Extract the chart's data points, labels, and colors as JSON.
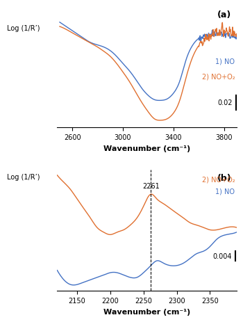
{
  "panel_a": {
    "title": "(a)",
    "xlabel": "Wavenumber (cm⁻¹)",
    "ylabel": "Log (1/R’)",
    "scale_bar_value": "0.02",
    "xlim": [
      3900,
      2480
    ],
    "ylim": [
      -0.12,
      0.05
    ],
    "legend": [
      {
        "label": "1) NO",
        "color": "#4472c4"
      },
      {
        "label": "2) NO+O₂",
        "color": "#e07030"
      }
    ],
    "curve_NO": {
      "color": "#4472c4",
      "x": [
        3900,
        3850,
        3800,
        3750,
        3700,
        3650,
        3600,
        3550,
        3500,
        3450,
        3400,
        3350,
        3300,
        3250,
        3200,
        3150,
        3100,
        3050,
        3000,
        2950,
        2900,
        2850,
        2800,
        2750,
        2700,
        2650,
        2600,
        2550,
        2500
      ],
      "y": [
        0.008,
        0.009,
        0.012,
        0.012,
        0.01,
        0.008,
        0.005,
        -0.005,
        -0.025,
        -0.055,
        -0.072,
        -0.08,
        -0.082,
        -0.081,
        -0.075,
        -0.065,
        -0.052,
        -0.04,
        -0.03,
        -0.02,
        -0.012,
        -0.007,
        -0.004,
        -0.001,
        0.004,
        0.01,
        0.016,
        0.022,
        0.028
      ]
    },
    "curve_NO2": {
      "color": "#e07030",
      "x": [
        3900,
        3850,
        3800,
        3750,
        3700,
        3650,
        3600,
        3550,
        3500,
        3450,
        3400,
        3350,
        3300,
        3250,
        3200,
        3150,
        3100,
        3050,
        3000,
        2950,
        2900,
        2850,
        2800,
        2750,
        2700,
        2650,
        2600,
        2550,
        2500
      ],
      "y": [
        0.01,
        0.014,
        0.016,
        0.014,
        0.01,
        0.005,
        -0.005,
        -0.022,
        -0.05,
        -0.082,
        -0.1,
        -0.108,
        -0.11,
        -0.108,
        -0.098,
        -0.085,
        -0.07,
        -0.055,
        -0.042,
        -0.03,
        -0.02,
        -0.013,
        -0.007,
        -0.002,
        0.003,
        0.008,
        0.013,
        0.018,
        0.022
      ]
    }
  },
  "panel_b": {
    "title": "(b)",
    "xlabel": "Wavenumber (cm⁻¹)",
    "ylabel": "Log (1/R’)",
    "scale_bar_value": "0.004",
    "xlim": [
      2390,
      2120
    ],
    "ylim": [
      -0.025,
      0.03
    ],
    "vline_x": 2261,
    "vline_label": "2261",
    "legend": [
      {
        "label": "2) NO+O₂",
        "color": "#e07030"
      },
      {
        "label": "1) NO",
        "color": "#4472c4"
      }
    ],
    "curve_NO": {
      "color": "#4472c4",
      "x": [
        2390,
        2375,
        2360,
        2350,
        2340,
        2330,
        2320,
        2310,
        2300,
        2290,
        2280,
        2270,
        2261,
        2250,
        2240,
        2230,
        2220,
        2210,
        2200,
        2190,
        2180,
        2170,
        2160,
        2150,
        2140,
        2130,
        2120
      ],
      "y": [
        0.004,
        0.003,
        0.001,
        -0.002,
        -0.004,
        -0.005,
        -0.007,
        -0.009,
        -0.01,
        -0.01,
        -0.009,
        -0.008,
        -0.01,
        -0.013,
        -0.015,
        -0.015,
        -0.014,
        -0.013,
        -0.013,
        -0.014,
        -0.015,
        -0.016,
        -0.017,
        -0.018,
        -0.018,
        -0.016,
        -0.012
      ]
    },
    "curve_NO2": {
      "color": "#e07030",
      "x": [
        2390,
        2375,
        2360,
        2350,
        2340,
        2330,
        2320,
        2310,
        2300,
        2290,
        2280,
        2270,
        2261,
        2250,
        2240,
        2230,
        2220,
        2210,
        2200,
        2190,
        2180,
        2170,
        2160,
        2150,
        2140,
        2130,
        2120
      ],
      "y": [
        0.006,
        0.006,
        0.005,
        0.005,
        0.006,
        0.007,
        0.008,
        0.01,
        0.012,
        0.014,
        0.016,
        0.018,
        0.02,
        0.015,
        0.01,
        0.007,
        0.005,
        0.004,
        0.003,
        0.004,
        0.006,
        0.01,
        0.014,
        0.018,
        0.022,
        0.025,
        0.028
      ]
    }
  },
  "background_color": "#ffffff",
  "blue_color": "#4472c4",
  "orange_color": "#e07030"
}
